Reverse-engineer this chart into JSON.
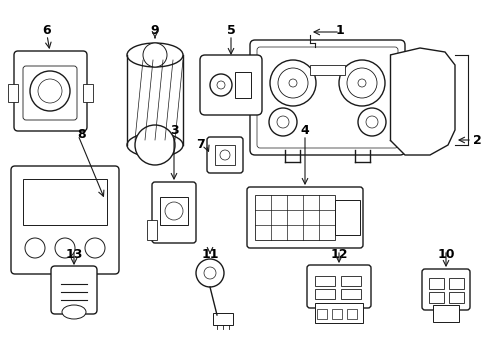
{
  "background_color": "#ffffff",
  "line_color": "#1a1a1a",
  "line_width": 1.0,
  "fig_w": 4.9,
  "fig_h": 3.6,
  "dpi": 100
}
